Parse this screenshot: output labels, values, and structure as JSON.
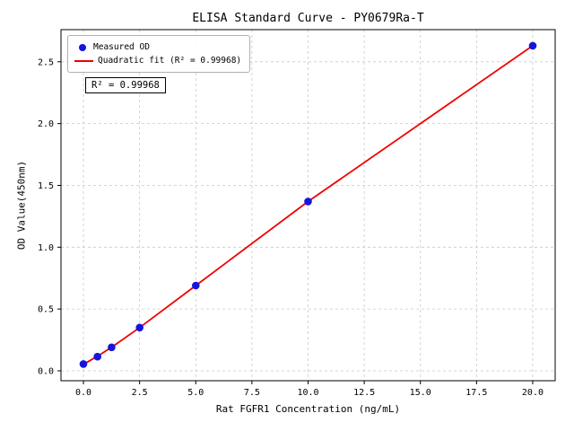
{
  "chart_data": {
    "type": "scatter",
    "title": "ELISA Standard Curve - PY0679Ra-T",
    "xlabel": "Rat FGFR1 Concentration (ng/mL)",
    "ylabel": "OD Value(450nm)",
    "xlim": [
      -1.0,
      21.0
    ],
    "ylim": [
      -0.08,
      2.76
    ],
    "xticks": [
      0.0,
      2.5,
      5.0,
      7.5,
      10.0,
      12.5,
      15.0,
      17.5,
      20.0
    ],
    "yticks": [
      0.0,
      0.5,
      1.0,
      1.5,
      2.0,
      2.5
    ],
    "grid": true,
    "legend_position": "upper-left",
    "annotation": "R² = 0.99968",
    "series": [
      {
        "name": "Measured OD",
        "type": "scatter",
        "color": "#1515e0",
        "x": [
          0,
          0.625,
          1.25,
          2.5,
          5,
          10,
          20
        ],
        "y": [
          0.055,
          0.115,
          0.19,
          0.35,
          0.69,
          1.37,
          2.63
        ]
      },
      {
        "name": "Quadratic fit (R² = 0.99968)",
        "type": "line",
        "color": "#f00000",
        "x": [
          0,
          0.625,
          1.25,
          2.5,
          5,
          10,
          20
        ],
        "y": [
          0.052,
          0.118,
          0.19,
          0.35,
          0.69,
          1.37,
          2.63
        ]
      }
    ]
  }
}
